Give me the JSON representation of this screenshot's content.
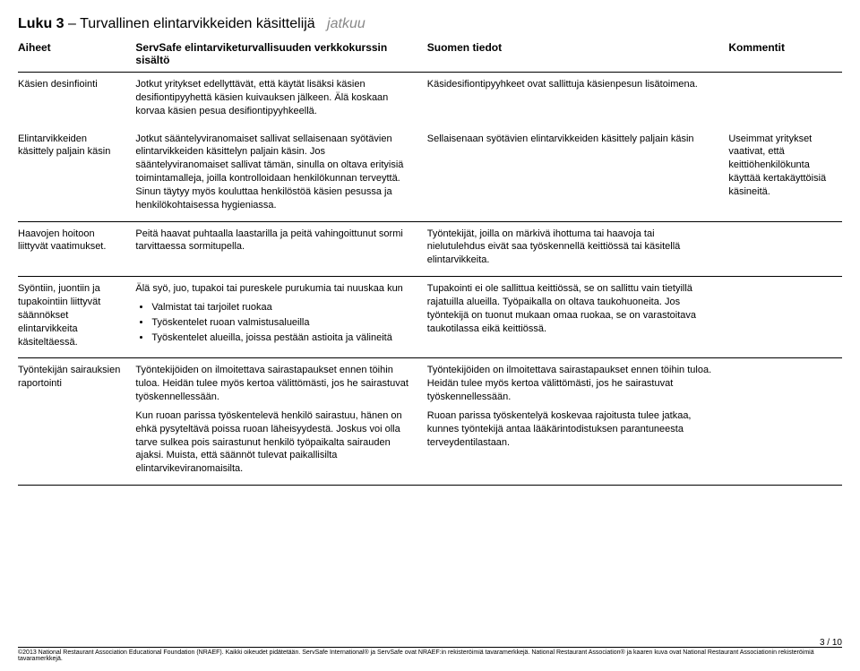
{
  "chapter": {
    "prefix": "Luku 3",
    "title": "Turvallinen elintarvikkeiden käsittelijä",
    "continues": "jatkuu"
  },
  "headers": {
    "topic": "Aiheet",
    "content": "ServSafe elintarviketurvallisuuden verkkokurssin sisältö",
    "finland": "Suomen tiedot",
    "comment": "Kommentit"
  },
  "rows": [
    {
      "topic": "Käsien desinfiointi",
      "content_p1": "Jotkut yritykset edellyttävät, että käytät lisäksi käsien desifiontipyyhettä käsien kuivauksen jälkeen. Älä koskaan korvaa käsien pesua desifiontipyyhkeellä.",
      "finland_p1": "Käsidesifiontipyyhkeet ovat sallittuja käsienpesun lisätoimena.",
      "comment_p1": ""
    },
    {
      "topic": "Elintarvikkeiden käsittely paljain käsin",
      "content_p1": "Jotkut sääntelyviranomaiset sallivat sellaisenaan syötävien elintarvikkeiden käsittelyn paljain käsin. Jos sääntelyviranomaiset sallivat tämän, sinulla on oltava erityisiä toimintamalleja, joilla kontrolloidaan henkilökunnan terveyttä. Sinun täytyy myös kouluttaa henkilöstöä käsien pesussa ja henkilökohtaisessa hygieniassa.",
      "finland_p1": "Sellaisenaan syötävien elintarvikkeiden käsittely paljain käsin",
      "comment_p1": "Useimmat yritykset vaativat, että keittiöhenkilökunta käyttää kertakäyttöisiä käsineitä."
    },
    {
      "topic": "Haavojen hoitoon liittyvät vaatimukset.",
      "content_p1": "Peitä haavat puhtaalla laastarilla ja peitä vahingoittunut sormi tarvittaessa sormitupella.",
      "finland_p1": "Työntekijät, joilla on märkivä ihottuma tai haavoja tai nielutulehdus eivät saa työskennellä keittiössä tai käsitellä elintarvikkeita.",
      "comment_p1": ""
    },
    {
      "topic": "Syöntiin, juontiin ja tupakointiin liittyvät säännökset elintarvikkeita käsiteltäessä.",
      "content_p1": "Älä syö, juo, tupakoi tai pureskele purukumia tai nuuskaa kun",
      "content_bullets": [
        "Valmistat tai tarjoilet ruokaa",
        "Työskentelet ruoan valmistusalueilla",
        "Työskentelet alueilla, joissa pestään astioita ja välineitä"
      ],
      "finland_p1": "Tupakointi ei ole sallittua keittiössä, se on sallittu vain tietyillä rajatuilla alueilla. Työpaikalla on oltava taukohuoneita. Jos työntekijä on tuonut mukaan omaa ruokaa, se on varastoitava taukotilassa eikä keittiössä.",
      "comment_p1": ""
    },
    {
      "topic": "Työntekijän sairauksien raportointi",
      "content_p1": "Työntekijöiden on ilmoitettava sairastapaukset ennen töihin tuloa. Heidän tulee myös kertoa välittömästi, jos he sairastuvat työskennellessään.",
      "content_p2": "Kun ruoan parissa työskentelevä henkilö sairastuu, hänen on ehkä pysyteltävä poissa ruoan läheisyydestä. Joskus voi olla tarve sulkea pois sairastunut henkilö työpaikalta sairauden ajaksi. Muista, että säännöt tulevat paikallisilta elintarvikeviranomaisilta.",
      "finland_p1": "Työntekijöiden on ilmoitettava sairastapaukset ennen töihin tuloa. Heidän tulee myös kertoa välittömästi, jos he sairastuvat työskennellessään.",
      "finland_p2": "Ruoan parissa työskentelyä koskevaa rajoitusta tulee jatkaa, kunnes työntekijä antaa lääkärintodistuksen parantuneesta terveydentilastaan.",
      "comment_p1": ""
    }
  ],
  "page_num": "3 / 10",
  "footer": "©2013 National Restaurant Association Educational Foundation (NRAEF). Kaikki oikeudet pidätetään. ServSafe International® ja ServSafe ovat NRAEF:in rekisteröimiä tavaramerkkejä. National Restaurant Association® ja kaaren kuva ovat National Restaurant Associationin rekisteröimiä tavaramerkkejä."
}
